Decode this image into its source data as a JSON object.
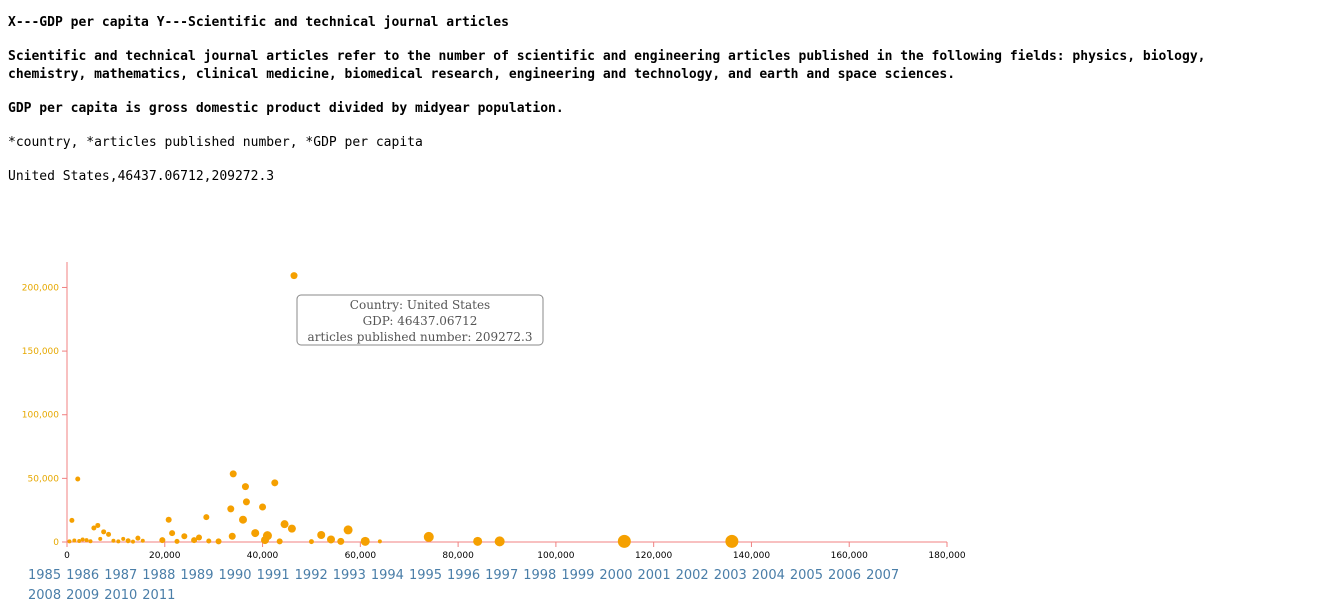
{
  "header": {
    "title": "X---GDP per capita Y---Scientific and technical journal articles",
    "description_line1": "Scientific and technical journal articles refer to the number of scientific and engineering articles published in the following fields: physics, biology,",
    "description_line2": "chemistry, mathematics, clinical medicine, biomedical research, engineering and technology, and earth and space sciences.",
    "gdp_definition": "GDP per capita is gross domestic product divided by midyear population.",
    "fields": "*country, *articles published number, *GDP per capita",
    "selected_record": "United States,46437.06712,209272.3"
  },
  "tooltip": {
    "country_line": "Country: United States",
    "gdp_line": "GDP: 46437.06712",
    "articles_line": "articles published number: 209272.3"
  },
  "years": [
    "1985",
    "1986",
    "1987",
    "1988",
    "1989",
    "1990",
    "1991",
    "1992",
    "1993",
    "1994",
    "1995",
    "1996",
    "1997",
    "1998",
    "1999",
    "2000",
    "2001",
    "2002",
    "2003",
    "2004",
    "2005",
    "2006",
    "2007",
    "2008",
    "2009",
    "2010",
    "2011"
  ],
  "colors": {
    "point": "#f5a000",
    "axis": "#f08080",
    "y_tick_text": "#e6a800",
    "x_tick_text": "#000000",
    "year_link": "#4a7ea8"
  },
  "chart_data": {
    "type": "scatter",
    "title": "",
    "xlabel": "",
    "ylabel": "",
    "xlim": [
      0,
      180000
    ],
    "ylim": [
      0,
      220000
    ],
    "x_ticks": [
      0,
      20000,
      40000,
      60000,
      80000,
      100000,
      120000,
      140000,
      160000,
      180000
    ],
    "x_tick_labels": [
      "0",
      "20,000",
      "40,000",
      "60,000",
      "80,000",
      "100,000",
      "120,000",
      "140,000",
      "160,000",
      "180,000"
    ],
    "y_ticks": [
      0,
      50000,
      100000,
      150000,
      200000
    ],
    "y_tick_labels": [
      "0",
      "50,000",
      "100,000",
      "150,000",
      "200,000"
    ],
    "highlighted": {
      "country": "United States",
      "x": 46437.06712,
      "y": 209272.3
    },
    "points": [
      {
        "x": 46437,
        "y": 209272,
        "r": 3.5
      },
      {
        "x": 1000,
        "y": 17000,
        "r": 2.5
      },
      {
        "x": 2200,
        "y": 49500,
        "r": 2.5
      },
      {
        "x": 500,
        "y": 500,
        "r": 2
      },
      {
        "x": 1500,
        "y": 1200,
        "r": 2
      },
      {
        "x": 2500,
        "y": 800,
        "r": 2
      },
      {
        "x": 3200,
        "y": 2000,
        "r": 2
      },
      {
        "x": 4000,
        "y": 1500,
        "r": 2
      },
      {
        "x": 4800,
        "y": 600,
        "r": 2
      },
      {
        "x": 5500,
        "y": 11000,
        "r": 2.5
      },
      {
        "x": 6300,
        "y": 13000,
        "r": 2.5
      },
      {
        "x": 6800,
        "y": 2500,
        "r": 2
      },
      {
        "x": 7500,
        "y": 8000,
        "r": 2.5
      },
      {
        "x": 8500,
        "y": 6000,
        "r": 2.5
      },
      {
        "x": 9500,
        "y": 1000,
        "r": 2
      },
      {
        "x": 10500,
        "y": 500,
        "r": 2
      },
      {
        "x": 11500,
        "y": 2500,
        "r": 2
      },
      {
        "x": 12500,
        "y": 1000,
        "r": 2.5
      },
      {
        "x": 13500,
        "y": 300,
        "r": 2
      },
      {
        "x": 14500,
        "y": 3000,
        "r": 2.5
      },
      {
        "x": 15500,
        "y": 1000,
        "r": 2
      },
      {
        "x": 19500,
        "y": 1500,
        "r": 3
      },
      {
        "x": 20800,
        "y": 17500,
        "r": 3
      },
      {
        "x": 21500,
        "y": 7000,
        "r": 3
      },
      {
        "x": 22500,
        "y": 500,
        "r": 2.5
      },
      {
        "x": 24000,
        "y": 4500,
        "r": 3
      },
      {
        "x": 26000,
        "y": 1500,
        "r": 3
      },
      {
        "x": 27000,
        "y": 3500,
        "r": 3
      },
      {
        "x": 28500,
        "y": 19500,
        "r": 3
      },
      {
        "x": 29000,
        "y": 800,
        "r": 2.5
      },
      {
        "x": 31000,
        "y": 500,
        "r": 3
      },
      {
        "x": 33500,
        "y": 26000,
        "r": 3.5
      },
      {
        "x": 34000,
        "y": 53500,
        "r": 3.5
      },
      {
        "x": 33800,
        "y": 4500,
        "r": 3.5
      },
      {
        "x": 36000,
        "y": 17500,
        "r": 4
      },
      {
        "x": 36500,
        "y": 43500,
        "r": 3.5
      },
      {
        "x": 36700,
        "y": 31500,
        "r": 3.5
      },
      {
        "x": 38500,
        "y": 7000,
        "r": 4
      },
      {
        "x": 40000,
        "y": 27500,
        "r": 3.5
      },
      {
        "x": 40500,
        "y": 1500,
        "r": 4
      },
      {
        "x": 41000,
        "y": 5000,
        "r": 4.5
      },
      {
        "x": 42500,
        "y": 46500,
        "r": 3.5
      },
      {
        "x": 43500,
        "y": 500,
        "r": 3
      },
      {
        "x": 44500,
        "y": 14000,
        "r": 4
      },
      {
        "x": 46000,
        "y": 10500,
        "r": 4
      },
      {
        "x": 50000,
        "y": 300,
        "r": 2.5
      },
      {
        "x": 52000,
        "y": 5500,
        "r": 4
      },
      {
        "x": 54000,
        "y": 2000,
        "r": 4
      },
      {
        "x": 56000,
        "y": 500,
        "r": 3.5
      },
      {
        "x": 57500,
        "y": 9500,
        "r": 4.5
      },
      {
        "x": 61000,
        "y": 500,
        "r": 4.5
      },
      {
        "x": 64000,
        "y": 500,
        "r": 2
      },
      {
        "x": 74000,
        "y": 4000,
        "r": 5
      },
      {
        "x": 84000,
        "y": 500,
        "r": 4.5
      },
      {
        "x": 88500,
        "y": 500,
        "r": 5
      },
      {
        "x": 114000,
        "y": 500,
        "r": 6.5
      },
      {
        "x": 136000,
        "y": 500,
        "r": 6.5
      }
    ]
  }
}
